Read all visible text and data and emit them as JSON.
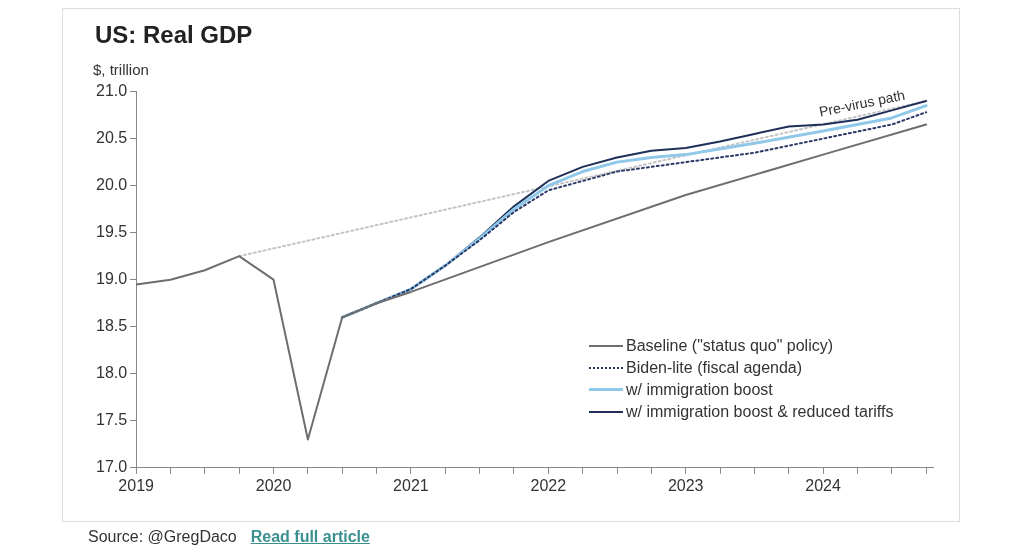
{
  "chart_data": {
    "type": "line",
    "title": "US: Real GDP",
    "ylabel": "$, trillion",
    "x": [
      2019,
      2019.25,
      2019.5,
      2019.75,
      2020,
      2020.25,
      2020.5,
      2020.75,
      2021,
      2022,
      2023,
      2024,
      2024.75
    ],
    "series": [
      {
        "name": "Baseline (\"status quo\" policy)",
        "color": "#6e6e6e",
        "line_style": "solid",
        "values": [
          18.95,
          19.0,
          19.1,
          19.25,
          19.0,
          17.3,
          18.6,
          18.75,
          18.87,
          19.4,
          19.9,
          20.33,
          20.65
        ]
      },
      {
        "name": "Biden-lite (fiscal agenda)",
        "color": "#2b3a67",
        "line_style": "dotted",
        "x": [
          2020.5,
          2020.75,
          2021,
          2021.25,
          2021.5,
          2021.75,
          2022,
          2022.5,
          2023,
          2023.5,
          2024,
          2024.5,
          2024.75
        ],
        "values": [
          18.6,
          18.75,
          18.9,
          19.15,
          19.42,
          19.72,
          19.95,
          20.15,
          20.25,
          20.35,
          20.5,
          20.65,
          20.78
        ]
      },
      {
        "name": "w/ immigration boost",
        "color": "#8fc8e8",
        "line_style": "solid",
        "x": [
          2020.5,
          2020.75,
          2021,
          2021.25,
          2021.5,
          2021.75,
          2022,
          2022.25,
          2022.5,
          2022.75,
          2023,
          2023.5,
          2024,
          2024.5,
          2024.75
        ],
        "values": [
          18.6,
          18.75,
          18.9,
          19.15,
          19.44,
          19.75,
          20.0,
          20.15,
          20.25,
          20.3,
          20.33,
          20.45,
          20.58,
          20.72,
          20.85
        ]
      },
      {
        "name": "w/ immigration boost & reduced tariffs",
        "color": "#1f2f5a",
        "line_style": "solid",
        "x": [
          2020.5,
          2020.75,
          2021,
          2021.25,
          2021.5,
          2021.75,
          2022,
          2022.25,
          2022.5,
          2022.75,
          2023,
          2023.25,
          2023.5,
          2023.75,
          2024,
          2024.25,
          2024.5,
          2024.75
        ],
        "values": [
          18.6,
          18.75,
          18.9,
          19.15,
          19.45,
          19.78,
          20.05,
          20.2,
          20.3,
          20.37,
          20.4,
          20.47,
          20.55,
          20.63,
          20.65,
          20.7,
          20.8,
          20.9
        ]
      },
      {
        "color": "#c4c4c4",
        "line_style": "dotted",
        "x": [
          2019.75,
          2024.75
        ],
        "values": [
          19.25,
          20.9
        ]
      }
    ],
    "xlim": [
      2019,
      2024.8
    ],
    "xticks": [
      2019,
      {
        "value": 2019.25,
        "label": null
      },
      {
        "value": 2019.5,
        "label": null
      },
      {
        "value": 2019.75,
        "label": null
      },
      2020,
      {
        "value": 2020.25,
        "label": null
      },
      {
        "value": 2020.5,
        "label": null
      },
      {
        "value": 2020.75,
        "label": null
      },
      2021,
      {
        "value": 2021.25,
        "label": null
      },
      {
        "value": 2021.5,
        "label": null
      },
      {
        "value": 2021.75,
        "label": null
      },
      2022,
      {
        "value": 2022.25,
        "label": null
      },
      {
        "value": 2022.5,
        "label": null
      },
      {
        "value": 2022.75,
        "label": null
      },
      2023,
      {
        "value": 2023.25,
        "label": null
      },
      {
        "value": 2023.5,
        "label": null
      },
      {
        "value": 2023.75,
        "label": null
      },
      2024,
      {
        "value": 2024.25,
        "label": null
      },
      {
        "value": 2024.5,
        "label": null
      },
      {
        "value": 2024.75,
        "label": null
      }
    ],
    "ylim": [
      17,
      21
    ],
    "yticks": [
      {
        "value": 17,
        "label": "17.0"
      },
      {
        "value": 17.5,
        "label": "17.5"
      },
      {
        "value": 18,
        "label": "18.0"
      },
      {
        "value": 18.5,
        "label": "18.5"
      },
      {
        "value": 19,
        "label": "19.0"
      },
      {
        "value": 19.5,
        "label": "19.5"
      },
      {
        "value": 20,
        "label": "20.0"
      },
      {
        "value": 20.5,
        "label": "20.5"
      },
      {
        "value": 21,
        "label": "21.0"
      }
    ],
    "grid": false,
    "legend": "bottom right",
    "marker": "none",
    "annotations": [
      {
        "text": "Pre-virus path",
        "x": 2024.3,
        "y": 20.75
      },
      "Source: @GregDaco",
      "Read full article"
    ]
  }
}
